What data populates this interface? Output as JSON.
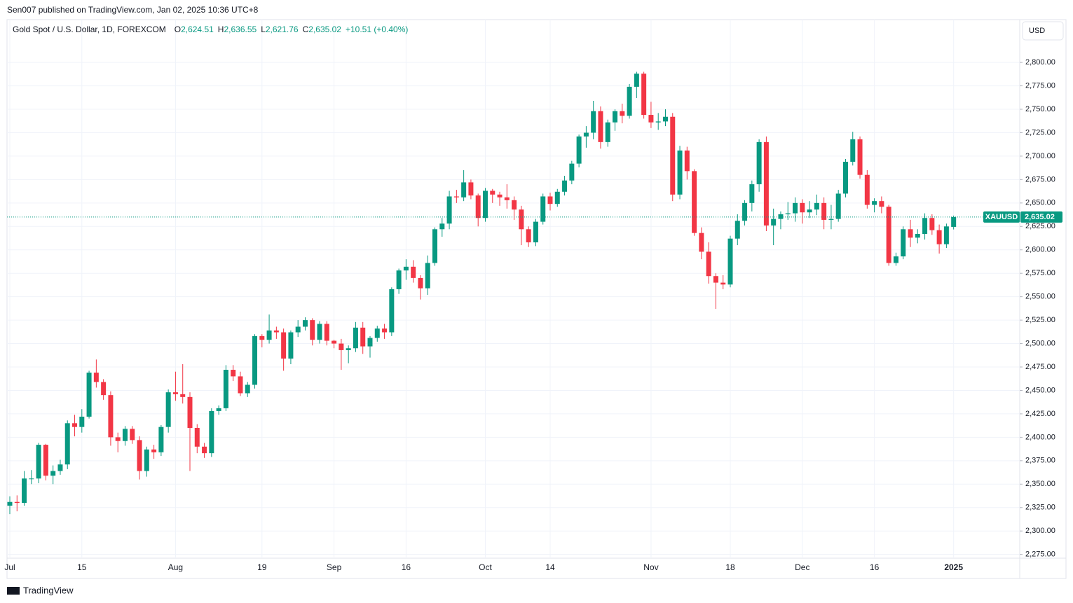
{
  "header": {
    "publisher": "Sen007 published on TradingView.com, Jan 02, 2025 10:36 UTC+8",
    "instrument": "Gold Spot / U.S. Dollar, 1D, FOREXCOM",
    "ohlc": [
      {
        "key": "O",
        "label": "2,624.51"
      },
      {
        "key": "H",
        "label": "2,636.55"
      },
      {
        "key": "L",
        "label": "2,621.76"
      },
      {
        "key": "C",
        "label": "2,635.02"
      }
    ],
    "change": "+10.51 (+0.40%)",
    "currency": "USD",
    "brand": "TradingView"
  },
  "chart_data": {
    "type": "candlestick",
    "up_color": "#089981",
    "down_color": "#f23645",
    "grid": true,
    "price_tag": {
      "symbol": "XAUUSD",
      "label": "2,635.02"
    },
    "categories": [
      "Jul",
      null,
      null,
      null,
      null,
      null,
      null,
      null,
      null,
      null,
      "15",
      null,
      null,
      null,
      null,
      null,
      null,
      null,
      null,
      null,
      null,
      null,
      null,
      "Aug",
      null,
      null,
      null,
      null,
      null,
      null,
      null,
      null,
      null,
      null,
      null,
      "19",
      null,
      null,
      null,
      null,
      null,
      null,
      null,
      null,
      null,
      "Sep",
      null,
      null,
      null,
      null,
      null,
      null,
      null,
      null,
      null,
      "16",
      null,
      null,
      null,
      null,
      null,
      null,
      null,
      null,
      null,
      null,
      "Oct",
      null,
      null,
      null,
      null,
      null,
      null,
      null,
      null,
      "14",
      null,
      null,
      null,
      null,
      null,
      null,
      null,
      null,
      null,
      null,
      null,
      null,
      null,
      "Nov",
      null,
      null,
      null,
      null,
      null,
      null,
      null,
      null,
      null,
      null,
      "18",
      null,
      null,
      null,
      null,
      null,
      null,
      null,
      null,
      null,
      "Dec",
      null,
      null,
      null,
      null,
      null,
      null,
      null,
      null,
      null,
      "16",
      null,
      null,
      null,
      null,
      null,
      null,
      null,
      null,
      null,
      null,
      "2025"
    ],
    "open": [
      2327,
      2331,
      2330,
      2356,
      2356,
      2392,
      2359,
      2364,
      2371,
      2415,
      2411,
      2422,
      2469,
      2459,
      2445,
      2400,
      2396,
      2409,
      2397,
      2364,
      2387,
      2384,
      2411,
      2448,
      2446,
      2443,
      2410,
      2390,
      2383,
      2428,
      2431,
      2472,
      2465,
      2447,
      2456,
      2508,
      2504,
      2514,
      2512,
      2484,
      2512,
      2518,
      2525,
      2504,
      2521,
      2503,
      2500,
      2493,
      2495,
      2517,
      2497,
      2506,
      2516,
      2512,
      2558,
      2578,
      2582,
      2570,
      2559,
      2586,
      2622,
      2628,
      2657,
      2656,
      2672,
      2658,
      2634,
      2663,
      2659,
      2656,
      2653,
      2643,
      2622,
      2608,
      2630,
      2657,
      2649,
      2662,
      2674,
      2692,
      2721,
      2725,
      2748,
      2715,
      2736,
      2748,
      2743,
      2774,
      2788,
      2744,
      2736,
      2737,
      2742,
      2659,
      2706,
      2684,
      2618,
      2598,
      2572,
      2565,
      2563,
      2612,
      2631,
      2650,
      2670,
      2715,
      2626,
      2633,
      2638,
      2639,
      2650,
      2640,
      2643,
      2650,
      2632,
      2633,
      2660,
      2694,
      2718,
      2680,
      2648,
      2652,
      2646,
      2586,
      2593,
      2622,
      2613,
      2617,
      2634,
      2621,
      2606,
      2624.51
    ],
    "high": [
      2337,
      2338,
      2364,
      2365,
      2394,
      2393,
      2370,
      2376,
      2418,
      2424,
      2430,
      2471,
      2483,
      2462,
      2449,
      2405,
      2412,
      2412,
      2401,
      2390,
      2392,
      2413,
      2451,
      2470,
      2478,
      2448,
      2414,
      2394,
      2431,
      2434,
      2477,
      2477,
      2470,
      2459,
      2510,
      2510,
      2531,
      2518,
      2516,
      2514,
      2525,
      2528,
      2527,
      2524,
      2524,
      2504,
      2505,
      2498,
      2523,
      2523,
      2508,
      2519,
      2521,
      2560,
      2580,
      2590,
      2589,
      2573,
      2594,
      2624,
      2634,
      2663,
      2664,
      2685,
      2675,
      2660,
      2666,
      2665,
      2662,
      2670,
      2657,
      2647,
      2625,
      2633,
      2660,
      2661,
      2665,
      2679,
      2695,
      2723,
      2732,
      2759,
      2753,
      2739,
      2750,
      2756,
      2777,
      2790,
      2790,
      2758,
      2746,
      2750,
      2746,
      2711,
      2710,
      2686,
      2624,
      2608,
      2575,
      2573,
      2615,
      2638,
      2653,
      2674,
      2718,
      2721,
      2644,
      2641,
      2651,
      2656,
      2654,
      2652,
      2659,
      2656,
      2648,
      2664,
      2697,
      2726,
      2721,
      2685,
      2655,
      2657,
      2648,
      2597,
      2625,
      2632,
      2622,
      2639,
      2638,
      2627,
      2628,
      2636.55
    ],
    "low": [
      2318,
      2321,
      2327,
      2350,
      2351,
      2354,
      2350,
      2360,
      2366,
      2401,
      2405,
      2420,
      2453,
      2440,
      2391,
      2384,
      2391,
      2393,
      2355,
      2358,
      2377,
      2380,
      2405,
      2439,
      2436,
      2364,
      2383,
      2378,
      2379,
      2424,
      2428,
      2460,
      2444,
      2443,
      2452,
      2496,
      2500,
      2505,
      2471,
      2478,
      2507,
      2514,
      2498,
      2500,
      2498,
      2495,
      2472,
      2479,
      2491,
      2489,
      2485,
      2502,
      2505,
      2508,
      2553,
      2568,
      2565,
      2547,
      2552,
      2583,
      2614,
      2622,
      2650,
      2652,
      2654,
      2625,
      2630,
      2650,
      2647,
      2644,
      2632,
      2605,
      2603,
      2604,
      2627,
      2642,
      2646,
      2658,
      2670,
      2688,
      2709,
      2718,
      2708,
      2710,
      2727,
      2735,
      2740,
      2762,
      2740,
      2730,
      2728,
      2732,
      2652,
      2654,
      2675,
      2615,
      2590,
      2564,
      2537,
      2558,
      2560,
      2605,
      2626,
      2641,
      2662,
      2620,
      2605,
      2622,
      2632,
      2630,
      2628,
      2634,
      2637,
      2622,
      2622,
      2630,
      2656,
      2690,
      2676,
      2644,
      2640,
      2639,
      2583,
      2583,
      2590,
      2603,
      2607,
      2611,
      2616,
      2596,
      2602,
      2621.76
    ],
    "close": [
      2331,
      2330,
      2356,
      2356,
      2392,
      2359,
      2364,
      2371,
      2415,
      2411,
      2422,
      2469,
      2459,
      2445,
      2400,
      2396,
      2409,
      2397,
      2364,
      2387,
      2384,
      2411,
      2448,
      2446,
      2443,
      2410,
      2390,
      2383,
      2428,
      2431,
      2472,
      2465,
      2447,
      2456,
      2508,
      2504,
      2514,
      2512,
      2484,
      2512,
      2518,
      2525,
      2504,
      2521,
      2503,
      2500,
      2493,
      2495,
      2517,
      2497,
      2506,
      2516,
      2512,
      2558,
      2578,
      2582,
      2570,
      2559,
      2586,
      2622,
      2628,
      2657,
      2656,
      2672,
      2658,
      2634,
      2663,
      2659,
      2656,
      2653,
      2643,
      2622,
      2608,
      2630,
      2657,
      2649,
      2662,
      2674,
      2692,
      2721,
      2725,
      2748,
      2715,
      2736,
      2748,
      2743,
      2774,
      2788,
      2744,
      2736,
      2737,
      2742,
      2659,
      2706,
      2684,
      2618,
      2598,
      2572,
      2565,
      2563,
      2612,
      2631,
      2650,
      2670,
      2715,
      2626,
      2633,
      2638,
      2639,
      2650,
      2640,
      2643,
      2650,
      2632,
      2633,
      2660,
      2694,
      2718,
      2680,
      2648,
      2652,
      2646,
      2586,
      2593,
      2622,
      2613,
      2617,
      2634,
      2621,
      2606,
      2625,
      2635.02
    ],
    "ylim": [
      2271,
      2824
    ],
    "yticks": [
      {
        "value": 2275,
        "label": "2,275.00"
      },
      {
        "value": 2300,
        "label": "2,300.00"
      },
      {
        "value": 2325,
        "label": "2,325.00"
      },
      {
        "value": 2350,
        "label": "2,350.00"
      },
      {
        "value": 2375,
        "label": "2,375.00"
      },
      {
        "value": 2400,
        "label": "2,400.00"
      },
      {
        "value": 2425,
        "label": "2,425.00"
      },
      {
        "value": 2450,
        "label": "2,450.00"
      },
      {
        "value": 2475,
        "label": "2,475.00"
      },
      {
        "value": 2500,
        "label": "2,500.00"
      },
      {
        "value": 2525,
        "label": "2,525.00"
      },
      {
        "value": 2550,
        "label": "2,550.00"
      },
      {
        "value": 2575,
        "label": "2,575.00"
      },
      {
        "value": 2600,
        "label": "2,600.00"
      },
      {
        "value": 2625,
        "label": "2,625.00"
      },
      {
        "value": 2650,
        "label": "2,650.00"
      },
      {
        "value": 2675,
        "label": "2,675.00"
      },
      {
        "value": 2700,
        "label": "2,700.00"
      },
      {
        "value": 2725,
        "label": "2,725.00"
      },
      {
        "value": 2750,
        "label": "2,750.00"
      },
      {
        "value": 2775,
        "label": "2,775.00"
      },
      {
        "value": 2800,
        "label": "2,800.00"
      }
    ]
  }
}
